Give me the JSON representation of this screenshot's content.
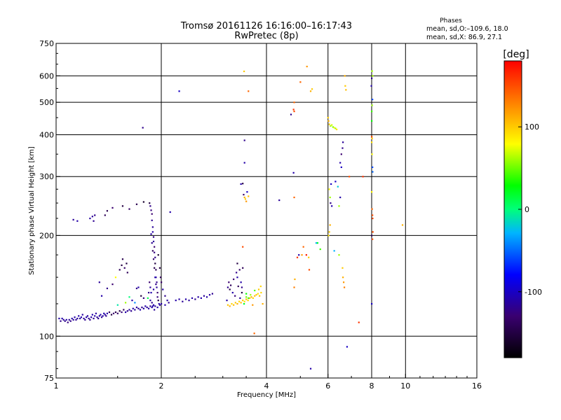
{
  "chart_data": {
    "type": "scatter",
    "title": "Tromsø 20161126 16:16:00–16:17:43",
    "subtitle": "RwPretec (8p)",
    "xlabel": "Frequency [MHz]",
    "ylabel": "Stationary phase Virtual Height [km]",
    "x_scale": "log2",
    "y_scale": "log",
    "xlim": [
      1,
      16
    ],
    "ylim": [
      75,
      750
    ],
    "x_ticks": [
      1,
      2,
      4,
      6,
      8,
      10,
      16
    ],
    "y_ticks": [
      75,
      100,
      200,
      300,
      400,
      500,
      600,
      750
    ],
    "x_grid": [
      2,
      4,
      6,
      8,
      10
    ],
    "y_grid": [
      100,
      200,
      300,
      400,
      500,
      600
    ],
    "grid": true,
    "stats": {
      "header": "Phases",
      "line1": "mean, sd,O:–109.6, 18.0",
      "line2": "mean, sd,X:  86.9, 27.1"
    },
    "colorbar": {
      "label": "[deg]",
      "range": [
        -180,
        180
      ],
      "ticks": [
        100,
        0,
        -100
      ]
    },
    "points": [
      [
        1.02,
        113,
        -110
      ],
      [
        1.03,
        111,
        -120
      ],
      [
        1.04,
        113,
        -110
      ],
      [
        1.05,
        112,
        -115
      ],
      [
        1.06,
        111,
        -120
      ],
      [
        1.07,
        112,
        -110
      ],
      [
        1.08,
        110,
        -125
      ],
      [
        1.09,
        112,
        -115
      ],
      [
        1.1,
        111,
        -120
      ],
      [
        1.11,
        113,
        -110
      ],
      [
        1.12,
        112,
        -115
      ],
      [
        1.13,
        114,
        -110
      ],
      [
        1.14,
        112,
        -118
      ],
      [
        1.15,
        113,
        -112
      ],
      [
        1.16,
        115,
        -110
      ],
      [
        1.17,
        113,
        -115
      ],
      [
        1.18,
        114,
        -108
      ],
      [
        1.19,
        116,
        -112
      ],
      [
        1.2,
        113,
        -115
      ],
      [
        1.21,
        112,
        -118
      ],
      [
        1.22,
        114,
        -110
      ],
      [
        1.23,
        115,
        -112
      ],
      [
        1.24,
        113,
        -116
      ],
      [
        1.25,
        112,
        -120
      ],
      [
        1.26,
        114,
        -112
      ],
      [
        1.27,
        116,
        -108
      ],
      [
        1.28,
        113,
        -118
      ],
      [
        1.29,
        115,
        -110
      ],
      [
        1.3,
        117,
        -112
      ],
      [
        1.31,
        114,
        -115
      ],
      [
        1.32,
        113,
        -118
      ],
      [
        1.33,
        115,
        -112
      ],
      [
        1.34,
        116,
        -110
      ],
      [
        1.35,
        114,
        -116
      ],
      [
        1.36,
        115,
        -112
      ],
      [
        1.37,
        117,
        -108
      ],
      [
        1.38,
        116,
        -112
      ],
      [
        1.39,
        115,
        -118
      ],
      [
        1.4,
        117,
        -110
      ],
      [
        1.42,
        118,
        -140
      ],
      [
        1.44,
        116,
        -150
      ],
      [
        1.46,
        117,
        -130
      ],
      [
        1.48,
        118,
        -145
      ],
      [
        1.5,
        117,
        -135
      ],
      [
        1.52,
        119,
        -150
      ],
      [
        1.54,
        118,
        -125
      ],
      [
        1.56,
        120,
        -140
      ],
      [
        1.58,
        118,
        -110
      ],
      [
        1.6,
        119,
        -120
      ],
      [
        1.62,
        120,
        -112
      ],
      [
        1.64,
        119,
        -118
      ],
      [
        1.66,
        121,
        -110
      ],
      [
        1.68,
        120,
        -115
      ],
      [
        1.7,
        122,
        -112
      ],
      [
        1.72,
        121,
        -116
      ],
      [
        1.74,
        120,
        -110
      ],
      [
        1.76,
        122,
        -120
      ],
      [
        1.78,
        121,
        -112
      ],
      [
        1.8,
        123,
        -110
      ],
      [
        1.82,
        122,
        -115
      ],
      [
        1.84,
        121,
        -112
      ],
      [
        1.86,
        123,
        -118
      ],
      [
        1.88,
        122,
        -110
      ],
      [
        1.9,
        124,
        -112
      ],
      [
        1.92,
        123,
        -115
      ],
      [
        1.95,
        122,
        -110
      ],
      [
        1.98,
        124,
        -116
      ],
      [
        2.0,
        125,
        -112
      ],
      [
        2.05,
        124,
        -110
      ],
      [
        2.1,
        126,
        -118
      ],
      [
        2.2,
        128,
        -110
      ],
      [
        2.25,
        129,
        -112
      ],
      [
        2.3,
        127,
        -116
      ],
      [
        2.35,
        129,
        -110
      ],
      [
        2.4,
        128,
        -114
      ],
      [
        2.45,
        130,
        -110
      ],
      [
        2.5,
        129,
        -118
      ],
      [
        2.55,
        131,
        -112
      ],
      [
        2.6,
        130,
        -110
      ],
      [
        2.65,
        132,
        -115
      ],
      [
        2.7,
        131,
        -110
      ],
      [
        2.75,
        133,
        -112
      ],
      [
        2.8,
        134,
        -118
      ],
      [
        1.12,
        223,
        -115
      ],
      [
        1.15,
        221,
        -110
      ],
      [
        1.25,
        225,
        -112
      ],
      [
        1.27,
        228,
        -115
      ],
      [
        1.28,
        221,
        -118
      ],
      [
        1.29,
        230,
        -120
      ],
      [
        1.38,
        230,
        -140
      ],
      [
        1.4,
        237,
        -145
      ],
      [
        1.45,
        242,
        -130
      ],
      [
        1.55,
        245,
        -150
      ],
      [
        1.62,
        240,
        -135
      ],
      [
        1.7,
        248,
        -145
      ],
      [
        1.78,
        252,
        -160
      ],
      [
        1.85,
        250,
        -150
      ],
      [
        2.12,
        235,
        -110
      ],
      [
        1.52,
        158,
        -140
      ],
      [
        1.54,
        163,
        -150
      ],
      [
        1.55,
        170,
        -145
      ],
      [
        1.57,
        160,
        -135
      ],
      [
        1.59,
        165,
        -150
      ],
      [
        1.6,
        155,
        -140
      ],
      [
        1.48,
        150,
        80
      ],
      [
        1.45,
        143,
        -130
      ],
      [
        1.4,
        139,
        -120
      ],
      [
        1.35,
        132,
        -110
      ],
      [
        1.33,
        145,
        -115
      ],
      [
        1.7,
        139,
        -120
      ],
      [
        1.72,
        140,
        -110
      ],
      [
        1.75,
        132,
        -150
      ],
      [
        1.78,
        130,
        -125
      ],
      [
        1.65,
        128,
        -110
      ],
      [
        1.62,
        131,
        0
      ],
      [
        1.68,
        126,
        -40
      ],
      [
        1.58,
        126,
        60
      ],
      [
        1.5,
        124,
        -10
      ],
      [
        1.86,
        245,
        -120
      ],
      [
        1.87,
        238,
        -125
      ],
      [
        1.88,
        232,
        -130
      ],
      [
        1.88,
        222,
        -118
      ],
      [
        1.89,
        212,
        -115
      ],
      [
        1.89,
        205,
        -110
      ],
      [
        1.9,
        198,
        -120
      ],
      [
        1.9,
        192,
        -115
      ],
      [
        1.91,
        185,
        -130
      ],
      [
        1.91,
        178,
        -125
      ],
      [
        1.92,
        172,
        -120
      ],
      [
        1.92,
        165,
        -150
      ],
      [
        1.93,
        158,
        -140
      ],
      [
        1.93,
        150,
        -110
      ],
      [
        1.94,
        145,
        -120
      ],
      [
        1.94,
        140,
        -115
      ],
      [
        1.95,
        135,
        -130
      ],
      [
        1.95,
        131,
        -125
      ],
      [
        1.96,
        128,
        -150
      ],
      [
        1.97,
        125,
        -110
      ],
      [
        1.87,
        202,
        -112
      ],
      [
        1.88,
        190,
        -118
      ],
      [
        1.89,
        180,
        -140
      ],
      [
        1.9,
        170,
        -135
      ],
      [
        1.91,
        160,
        -145
      ],
      [
        1.92,
        150,
        -110
      ],
      [
        1.93,
        143,
        -120
      ],
      [
        1.86,
        140,
        -115
      ],
      [
        1.87,
        135,
        -110
      ],
      [
        1.9,
        138,
        -112
      ],
      [
        1.85,
        145,
        -130
      ],
      [
        1.84,
        135,
        -120
      ],
      [
        1.86,
        128,
        -112
      ],
      [
        1.88,
        126,
        -118
      ],
      [
        1.89,
        123,
        -110
      ],
      [
        1.91,
        120,
        -115
      ],
      [
        1.98,
        160,
        -150
      ],
      [
        1.99,
        150,
        -140
      ],
      [
        2.0,
        145,
        -135
      ],
      [
        2.02,
        138,
        -110
      ],
      [
        2.05,
        132,
        -120
      ],
      [
        2.08,
        128,
        -112
      ],
      [
        1.83,
        130,
        10
      ],
      [
        1.96,
        175,
        -160
      ],
      [
        1.77,
        420,
        -120
      ],
      [
        2.25,
        540,
        -100
      ],
      [
        3.08,
        128,
        -110
      ],
      [
        3.1,
        140,
        -120
      ],
      [
        3.12,
        145,
        -130
      ],
      [
        3.14,
        138,
        -150
      ],
      [
        3.16,
        142,
        -140
      ],
      [
        3.2,
        135,
        -110
      ],
      [
        3.22,
        148,
        -130
      ],
      [
        3.25,
        132,
        -125
      ],
      [
        3.28,
        155,
        -120
      ],
      [
        3.3,
        150,
        -110
      ],
      [
        3.32,
        141,
        -140
      ],
      [
        3.3,
        165,
        -150
      ],
      [
        3.35,
        158,
        -135
      ],
      [
        3.38,
        145,
        -110
      ],
      [
        3.4,
        140,
        -120
      ],
      [
        3.42,
        160,
        -140
      ],
      [
        3.36,
        130,
        -115
      ],
      [
        3.4,
        135,
        -150
      ],
      [
        3.1,
        124,
        100
      ],
      [
        3.14,
        123,
        110
      ],
      [
        3.18,
        125,
        95
      ],
      [
        3.22,
        124,
        105
      ],
      [
        3.26,
        126,
        100
      ],
      [
        3.3,
        125,
        110
      ],
      [
        3.34,
        127,
        95
      ],
      [
        3.38,
        126,
        105
      ],
      [
        3.42,
        128,
        100
      ],
      [
        3.46,
        127,
        90
      ],
      [
        3.5,
        129,
        105
      ],
      [
        3.54,
        128,
        95
      ],
      [
        3.58,
        130,
        100
      ],
      [
        3.62,
        131,
        110
      ],
      [
        3.66,
        130,
        95
      ],
      [
        3.7,
        132,
        105
      ],
      [
        3.74,
        133,
        100
      ],
      [
        3.78,
        134,
        90
      ],
      [
        3.82,
        132,
        105
      ],
      [
        3.86,
        135,
        95
      ],
      [
        3.5,
        131,
        50
      ],
      [
        3.55,
        130,
        40
      ],
      [
        3.6,
        133,
        60
      ],
      [
        3.45,
        125,
        20
      ],
      [
        3.5,
        134,
        30
      ],
      [
        3.7,
        137,
        45
      ],
      [
        3.8,
        138,
        100
      ],
      [
        3.85,
        141,
        95
      ],
      [
        3.9,
        125,
        110
      ],
      [
        3.65,
        124,
        120
      ],
      [
        3.38,
        285,
        -110
      ],
      [
        3.42,
        286,
        -150
      ],
      [
        3.44,
        265,
        -130
      ],
      [
        3.46,
        260,
        110
      ],
      [
        3.48,
        257,
        100
      ],
      [
        3.5,
        253,
        120
      ],
      [
        3.52,
        270,
        -100
      ],
      [
        3.55,
        262,
        105
      ],
      [
        3.46,
        385,
        -120
      ],
      [
        3.46,
        330,
        -110
      ],
      [
        3.45,
        619,
        100
      ],
      [
        3.55,
        540,
        140
      ],
      [
        3.42,
        185,
        150
      ],
      [
        3.69,
        102,
        140
      ],
      [
        4.35,
        255,
        -115
      ],
      [
        4.7,
        460,
        -120
      ],
      [
        4.78,
        308,
        -110
      ],
      [
        4.78,
        476,
        160
      ],
      [
        4.8,
        470,
        150
      ],
      [
        4.8,
        500,
        140
      ],
      [
        4.8,
        260,
        140
      ],
      [
        4.95,
        175,
        -110
      ],
      [
        4.82,
        148,
        110
      ],
      [
        4.8,
        140,
        130
      ],
      [
        4.9,
        172,
        160
      ],
      [
        5.05,
        175,
        120
      ],
      [
        5.1,
        185,
        140
      ],
      [
        5.2,
        175,
        170
      ],
      [
        5.28,
        172,
        100
      ],
      [
        5.3,
        158,
        150
      ],
      [
        5.35,
        80,
        -110
      ],
      [
        5.0,
        575,
        140
      ],
      [
        5.22,
        640,
        120
      ],
      [
        5.35,
        540,
        110
      ],
      [
        5.4,
        548,
        100
      ],
      [
        5.55,
        190,
        -30
      ],
      [
        5.6,
        190,
        20
      ],
      [
        5.7,
        182,
        40
      ],
      [
        6.0,
        450,
        100
      ],
      [
        6.02,
        440,
        110
      ],
      [
        6.05,
        430,
        100
      ],
      [
        6.1,
        425,
        60
      ],
      [
        6.15,
        428,
        70
      ],
      [
        6.2,
        422,
        50
      ],
      [
        6.25,
        420,
        80
      ],
      [
        6.3,
        418,
        60
      ],
      [
        6.35,
        415,
        90
      ],
      [
        6.05,
        205,
        100
      ],
      [
        6.08,
        215,
        110
      ],
      [
        6.02,
        200,
        90
      ],
      [
        6.05,
        275,
        80
      ],
      [
        6.08,
        260,
        60
      ],
      [
        6.1,
        250,
        -120
      ],
      [
        6.15,
        245,
        -110
      ],
      [
        6.12,
        285,
        -100
      ],
      [
        6.25,
        180,
        -30
      ],
      [
        6.3,
        290,
        -100
      ],
      [
        6.4,
        280,
        -20
      ],
      [
        6.5,
        330,
        -110
      ],
      [
        6.55,
        350,
        -130
      ],
      [
        6.6,
        365,
        -120
      ],
      [
        6.62,
        380,
        -115
      ],
      [
        6.55,
        320,
        -100
      ],
      [
        6.5,
        260,
        -110
      ],
      [
        6.45,
        245,
        60
      ],
      [
        6.45,
        175,
        60
      ],
      [
        6.6,
        160,
        100
      ],
      [
        6.62,
        150,
        110
      ],
      [
        6.65,
        145,
        120
      ],
      [
        6.68,
        140,
        130
      ],
      [
        6.7,
        600,
        110
      ],
      [
        6.72,
        560,
        100
      ],
      [
        6.75,
        545,
        105
      ],
      [
        6.8,
        93,
        -100
      ],
      [
        6.9,
        300,
        150
      ],
      [
        7.35,
        110,
        160
      ],
      [
        7.55,
        300,
        160
      ],
      [
        7.98,
        560,
        -110
      ],
      [
        8.0,
        590,
        -120
      ],
      [
        8.02,
        620,
        60
      ],
      [
        8.05,
        600,
        60
      ],
      [
        8.0,
        440,
        30
      ],
      [
        8.0,
        470,
        40
      ],
      [
        8.02,
        490,
        60
      ],
      [
        8.04,
        510,
        -60
      ],
      [
        8.0,
        395,
        150
      ],
      [
        8.02,
        390,
        100
      ],
      [
        8.0,
        380,
        90
      ],
      [
        8.02,
        350,
        80
      ],
      [
        8.04,
        320,
        -60
      ],
      [
        8.05,
        310,
        -50
      ],
      [
        8.0,
        270,
        80
      ],
      [
        8.02,
        240,
        140
      ],
      [
        8.04,
        230,
        150
      ],
      [
        8.05,
        225,
        150
      ],
      [
        8.0,
        200,
        -140
      ],
      [
        8.02,
        195,
        -110
      ],
      [
        8.04,
        195,
        140
      ],
      [
        8.06,
        205,
        150
      ],
      [
        8.0,
        125,
        -100
      ],
      [
        9.8,
        215,
        110
      ]
    ]
  }
}
